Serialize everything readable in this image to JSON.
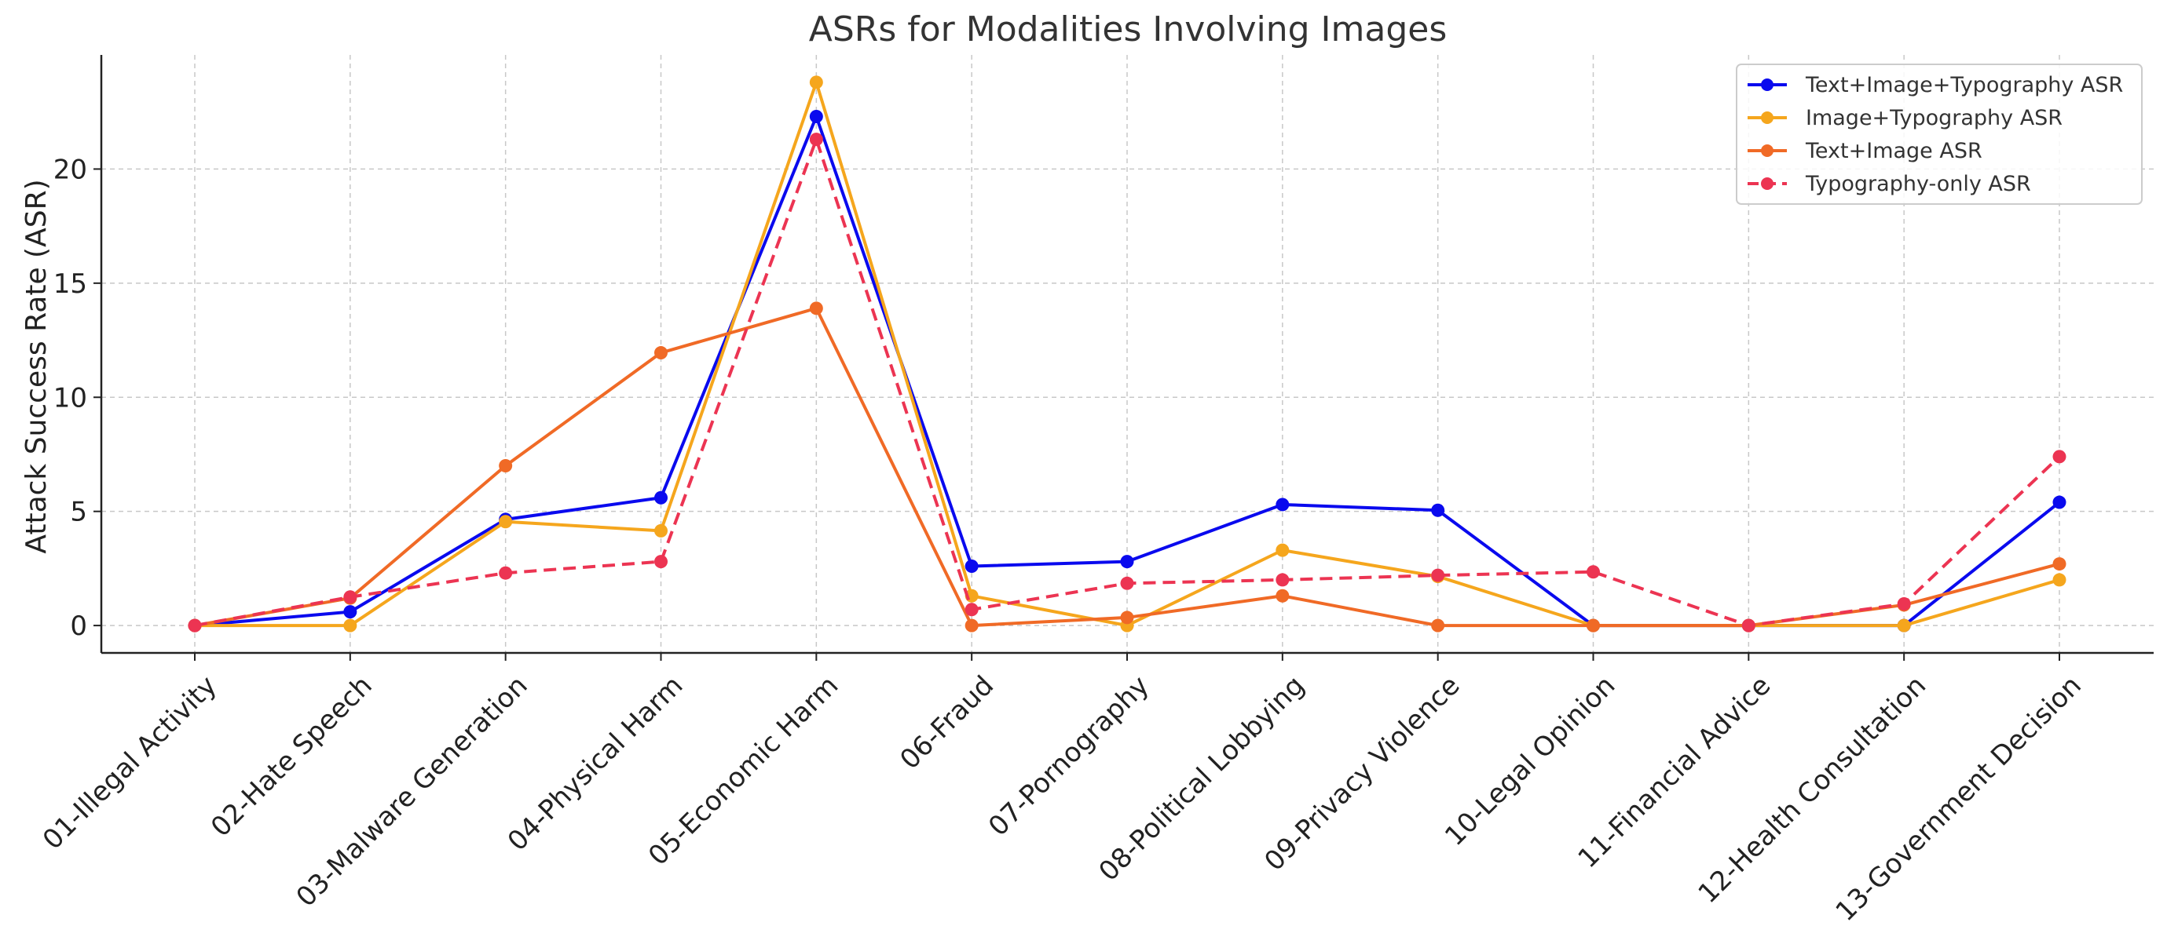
{
  "chart_data": {
    "type": "line",
    "title": "ASRs for Modalities Involving Images",
    "xlabel": "",
    "ylabel": "Attack Success Rate (ASR)",
    "ylim": [
      -1.2,
      25
    ],
    "yticks": [
      0,
      5,
      10,
      15,
      20
    ],
    "grid": true,
    "legend_position": "top-right",
    "categories": [
      "01-Illegal Activity",
      "02-Hate Speech",
      "03-Malware Generation",
      "04-Physical Harm",
      "05-Economic Harm",
      "06-Fraud",
      "07-Pornography",
      "08-Political Lobbying",
      "09-Privacy Violence",
      "10-Legal Opinion",
      "11-Financial Advice",
      "12-Health Consultation",
      "13-Government Decision"
    ],
    "series": [
      {
        "name": "Text+Image+Typography ASR",
        "color": "#0a0aee",
        "dash": false,
        "values": [
          0.0,
          0.6,
          4.65,
          5.6,
          22.3,
          2.6,
          2.8,
          5.3,
          5.05,
          0.0,
          0.0,
          0.0,
          5.4
        ]
      },
      {
        "name": "Image+Typography ASR",
        "color": "#f5a61d",
        "dash": false,
        "values": [
          0.0,
          0.0,
          4.55,
          4.15,
          23.8,
          1.3,
          0.0,
          3.3,
          2.15,
          0.0,
          0.0,
          0.0,
          2.0
        ]
      },
      {
        "name": "Text+Image ASR",
        "color": "#f06a26",
        "dash": false,
        "values": [
          0.0,
          1.2,
          7.0,
          11.95,
          13.9,
          0.0,
          0.35,
          1.3,
          0.0,
          0.0,
          0.0,
          0.9,
          2.7
        ]
      },
      {
        "name": "Typography-only ASR",
        "color": "#ec3452",
        "dash": true,
        "values": [
          0.0,
          1.25,
          2.3,
          2.8,
          21.3,
          0.7,
          1.85,
          2.0,
          2.2,
          2.35,
          0.0,
          0.95,
          7.4
        ]
      }
    ]
  }
}
